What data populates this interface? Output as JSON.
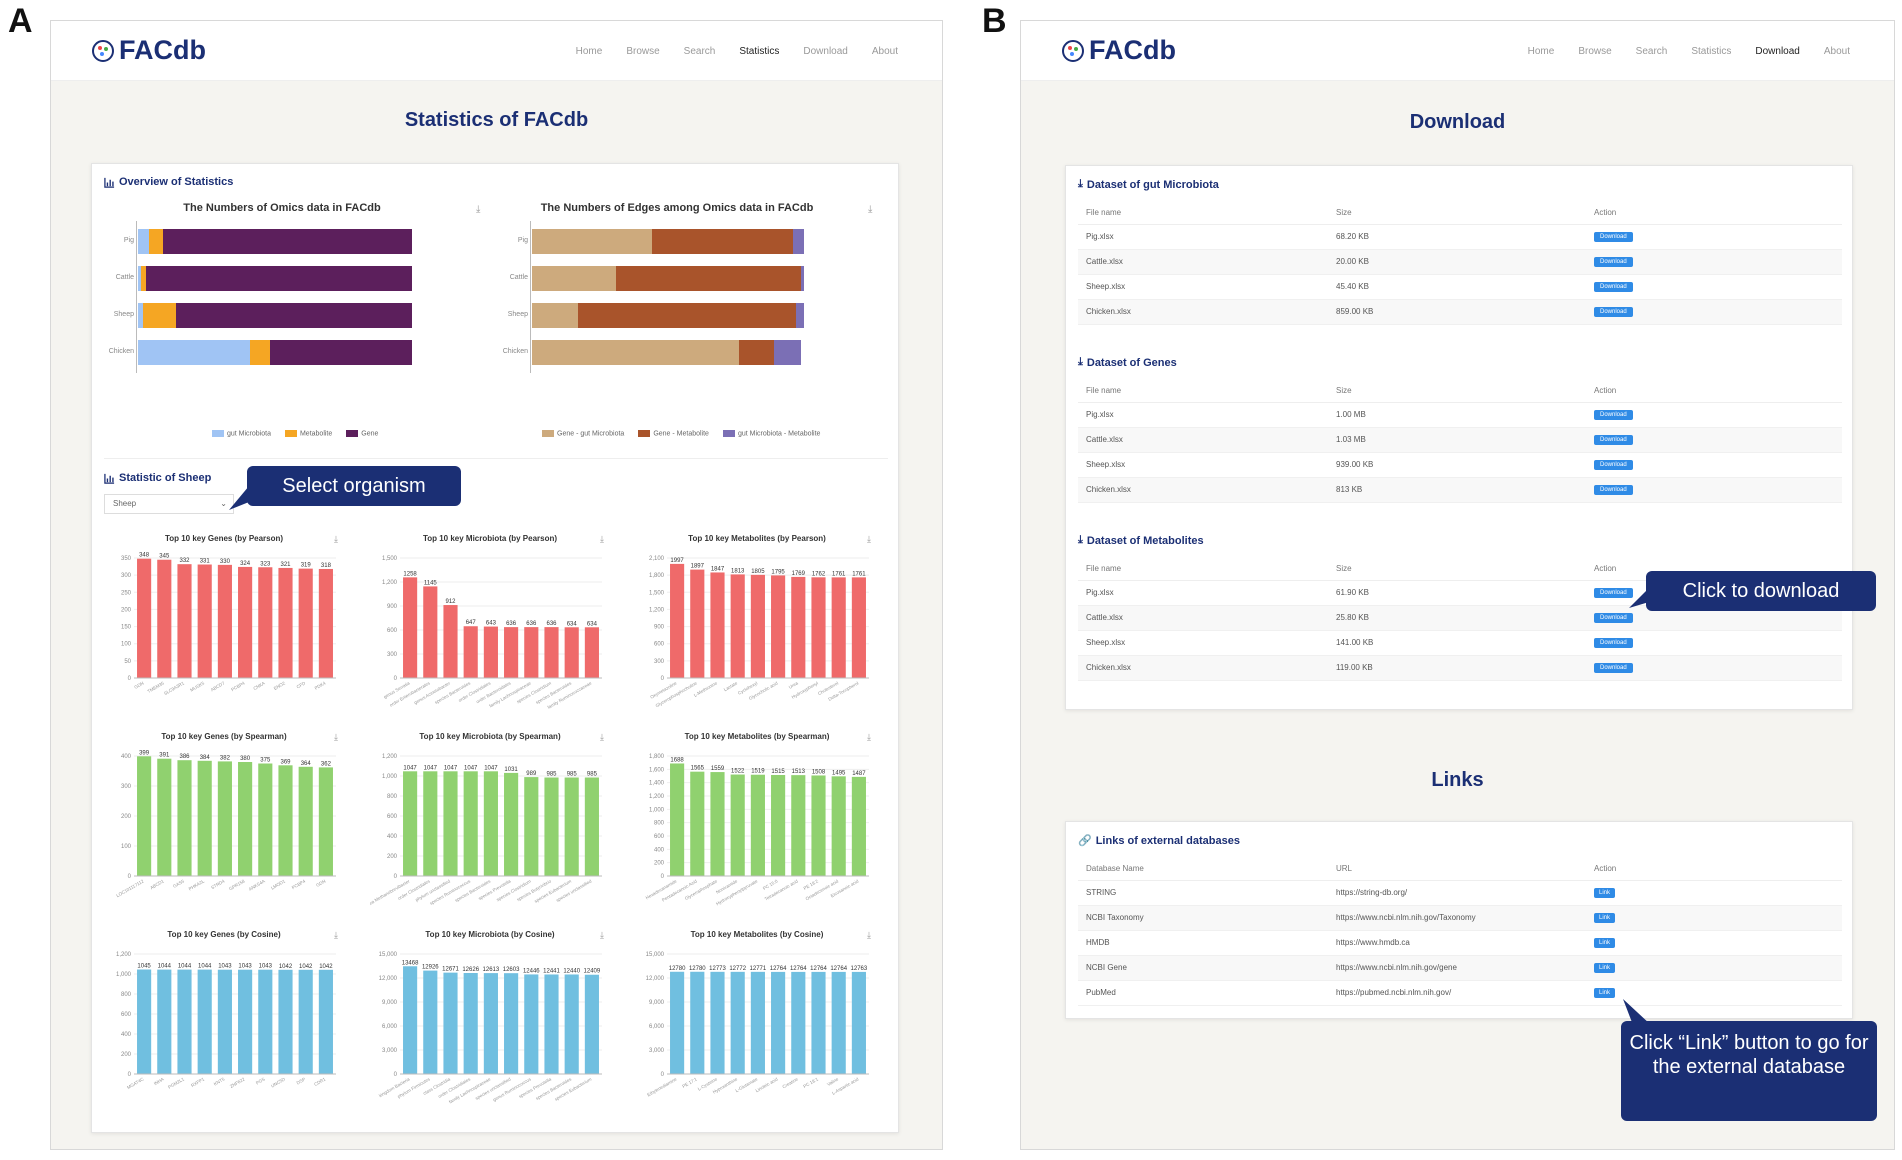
{
  "panel_labels": {
    "a": "A",
    "b": "B"
  },
  "logo_text": "FACdb",
  "pageA": {
    "nav": [
      "Home",
      "Browse",
      "Search",
      "Statistics",
      "Download",
      "About"
    ],
    "active_nav": "Statistics",
    "title": "Statistics of FACdb",
    "overview_title": "Overview of Statistics",
    "sheep_title": "Statistic of Sheep",
    "select_value": "Sheep",
    "callout_select": "Select organism"
  },
  "chart_data": [
    {
      "type": "bar",
      "stacked": true,
      "orientation": "horizontal",
      "title": "The Numbers of Omics data in FACdb",
      "categories": [
        "Pig",
        "Cattle",
        "Sheep",
        "Chicken"
      ],
      "series": [
        {
          "name": "gut Microbiota",
          "color": "#a0c4f4",
          "values": [
            4,
            1,
            2,
            41
          ]
        },
        {
          "name": "Metabolite",
          "color": "#f5a623",
          "values": [
            5,
            2,
            12,
            7
          ]
        },
        {
          "name": "Gene",
          "color": "#5c1f5c",
          "values": [
            91,
            97,
            86,
            52
          ]
        }
      ]
    },
    {
      "type": "bar",
      "stacked": true,
      "orientation": "horizontal",
      "title": "The Numbers of Edges among Omics data in FACdb",
      "categories": [
        "Pig",
        "Cattle",
        "Sheep",
        "Chicken"
      ],
      "series": [
        {
          "name": "Gene - gut Microbiota",
          "color": "#cdaa7d",
          "values": [
            44,
            31,
            17,
            76
          ]
        },
        {
          "name": "Gene - Metabolite",
          "color": "#a9542b",
          "values": [
            52,
            68,
            80,
            13
          ]
        },
        {
          "name": "gut Microbiota - Metabolite",
          "color": "#7b6fb5",
          "values": [
            4,
            1,
            3,
            10
          ]
        }
      ]
    },
    {
      "type": "bar",
      "title": "Top 10 key Genes (by Pearson)",
      "color": "#ef6a6a",
      "yticks": [
        0,
        50,
        100,
        150,
        200,
        250,
        300,
        350
      ],
      "ylim": [
        0,
        350
      ],
      "values": [
        348,
        345,
        332,
        331,
        330,
        324,
        323,
        321,
        319,
        318
      ],
      "categories": [
        "GDN",
        "TMEM35",
        "SLC9A3R1",
        "MUSK5",
        "ABCD7",
        "PCBP4",
        "CNKA",
        "ENO2",
        "CFD",
        "PDK4"
      ]
    },
    {
      "type": "bar",
      "title": "Top 10 key Microbiota (by Pearson)",
      "color": "#ef6a6a",
      "yticks": [
        0,
        300,
        600,
        900,
        1200,
        1500
      ],
      "ylim": [
        0,
        1500
      ],
      "values": [
        1258,
        1145,
        912,
        647,
        643,
        636,
        636,
        636,
        634,
        634
      ],
      "categories": [
        "genus Serratia",
        "order Enterobacterales",
        "genus Acinetobacter",
        "species Bacteroides",
        "order Clostridiales",
        "order Bacteroidales",
        "family Lachnospiraceae",
        "species Clostridium",
        "species Bacteroides",
        "family Ruminococcaceae"
      ]
    },
    {
      "type": "bar",
      "title": "Top 10 key Metabolites (by Pearson)",
      "color": "#ef6a6a",
      "yticks": [
        0,
        300,
        600,
        900,
        1200,
        1500,
        1800,
        2100
      ],
      "ylim": [
        0,
        2100
      ],
      "values": [
        1997,
        1897,
        1847,
        1813,
        1805,
        1795,
        1769,
        1762,
        1761,
        1761
      ],
      "categories": [
        "Oxymetazoline",
        "Glycerophosphocholine",
        "L-Methionine",
        "Lactate",
        "Cyclohexyl",
        "Glycocholic acid",
        "Urea",
        "Hydroxyphenyl",
        "Cholesterol",
        "Delta-Tocopherol"
      ]
    },
    {
      "type": "bar",
      "title": "Top 10 key Genes (by Spearman)",
      "color": "#90d16f",
      "yticks": [
        0,
        100,
        200,
        300,
        400
      ],
      "ylim": [
        0,
        400
      ],
      "values": [
        399,
        391,
        386,
        384,
        382,
        380,
        375,
        369,
        364,
        362
      ],
      "categories": [
        "LOC101117112",
        "ABCD1",
        "GAS5",
        "PHKA2L",
        "STRD4",
        "GPR158",
        "ANKS4A",
        "LMOD1",
        "PCBP4",
        "GDN"
      ]
    },
    {
      "type": "bar",
      "title": "Top 10 key Microbiota (by Spearman)",
      "color": "#90d16f",
      "yticks": [
        0,
        200,
        400,
        600,
        800,
        1000,
        1200
      ],
      "ylim": [
        0,
        1200
      ],
      "values": [
        1047,
        1047,
        1047,
        1047,
        1047,
        1031,
        989,
        985,
        985,
        985
      ],
      "categories": [
        "archaea Methanobrevibacter",
        "order Clostridiales",
        "phylum unclassified",
        "species Ruminococcus",
        "species Bacteroides",
        "species Prevotella",
        "species Clostridium",
        "species Butyrivibrio",
        "species Eubacterium",
        "species unclassified"
      ]
    },
    {
      "type": "bar",
      "title": "Top 10 key Metabolites (by Spearman)",
      "color": "#90d16f",
      "yticks": [
        0,
        200,
        400,
        600,
        800,
        1000,
        1200,
        1400,
        1600,
        1800
      ],
      "ylim": [
        0,
        1800
      ],
      "values": [
        1688,
        1565,
        1559,
        1522,
        1519,
        1515,
        1513,
        1508,
        1495,
        1487
      ],
      "categories": [
        "Hexadecanamide",
        "Pentadecanoic Acid",
        "Glycerophosphate",
        "Nonivamide",
        "Hydroxyphenylpyruvate",
        "PC 15:0",
        "Tetradecanoic acid",
        "PE 18:2",
        "Octadecenoic acid",
        "Eicosanoic acid"
      ]
    },
    {
      "type": "bar",
      "title": "Top 10 key Genes (by Cosine)",
      "color": "#70bfe0",
      "yticks": [
        0,
        200,
        400,
        600,
        800,
        1000,
        1200
      ],
      "ylim": [
        0,
        1200
      ],
      "values": [
        1045,
        1044,
        1044,
        1044,
        1043,
        1043,
        1043,
        1042,
        1042,
        1042
      ],
      "categories": [
        "MGAT4C",
        "INHA",
        "PGM2L1",
        "RXFP1",
        "KNT5",
        "ZNF622",
        "PGS",
        "UNC5D",
        "DSP",
        "CDR1"
      ]
    },
    {
      "type": "bar",
      "title": "Top 10 key Microbiota (by Cosine)",
      "color": "#70bfe0",
      "yticks": [
        0,
        3000,
        6000,
        9000,
        12000,
        15000
      ],
      "ylim": [
        0,
        15000
      ],
      "values": [
        13468,
        12926,
        12671,
        12626,
        12613,
        12603,
        12446,
        12441,
        12440,
        12409
      ],
      "categories": [
        "kingdom Bacteria",
        "phylum Firmicutes",
        "class Clostridia",
        "order Clostridiales",
        "family Lachnospiraceae",
        "species unclassified",
        "genus Ruminococcus",
        "species Prevotella",
        "species Bacteroides",
        "species Eubacterium"
      ]
    },
    {
      "type": "bar",
      "title": "Top 10 key Metabolites (by Cosine)",
      "color": "#70bfe0",
      "yticks": [
        0,
        3000,
        6000,
        9000,
        12000,
        15000
      ],
      "ylim": [
        0,
        15000
      ],
      "values": [
        12780,
        12780,
        12773,
        12772,
        12771,
        12764,
        12764,
        12764,
        12764,
        12763
      ],
      "categories": [
        "Ethylenediamine",
        "PE 17:1",
        "L-Cysteine",
        "Hypoxanthine",
        "L-Glutamate",
        "Linoleic acid",
        "Creatine",
        "PC 18:1",
        "Valine",
        "L-Aspartic acid"
      ]
    }
  ],
  "pageB": {
    "nav": [
      "Home",
      "Browse",
      "Search",
      "Statistics",
      "Download",
      "About"
    ],
    "active_nav": "Download",
    "title": "Download",
    "table_headers": [
      "File name",
      "Size",
      "Action"
    ],
    "button_label": "Download",
    "datasets": [
      {
        "title": "Dataset of gut Microbiota",
        "rows": [
          [
            "Pig.xlsx",
            "68.20 KB"
          ],
          [
            "Cattle.xlsx",
            "20.00 KB"
          ],
          [
            "Sheep.xlsx",
            "45.40 KB"
          ],
          [
            "Chicken.xlsx",
            "859.00 KB"
          ]
        ]
      },
      {
        "title": "Dataset of Genes",
        "rows": [
          [
            "Pig.xlsx",
            "1.00 MB"
          ],
          [
            "Cattle.xlsx",
            "1.03 MB"
          ],
          [
            "Sheep.xlsx",
            "939.00 KB"
          ],
          [
            "Chicken.xlsx",
            "813 KB"
          ]
        ]
      },
      {
        "title": "Dataset of Metabolites",
        "rows": [
          [
            "Pig.xlsx",
            "61.90 KB"
          ],
          [
            "Cattle.xlsx",
            "25.80 KB"
          ],
          [
            "Sheep.xlsx",
            "141.00 KB"
          ],
          [
            "Chicken.xlsx",
            "119.00 KB"
          ]
        ]
      }
    ],
    "links_title": "Links",
    "links_card_title": "Links of external databases",
    "links_headers": [
      "Database Name",
      "URL",
      "Action"
    ],
    "link_button": "Link",
    "links": [
      [
        "STRING",
        "https://string-db.org/"
      ],
      [
        "NCBI Taxonomy",
        "https://www.ncbi.nlm.nih.gov/Taxonomy"
      ],
      [
        "HMDB",
        "https://www.hmdb.ca"
      ],
      [
        "NCBI Gene",
        "https://www.ncbi.nlm.nih.gov/gene"
      ],
      [
        "PubMed",
        "https://pubmed.ncbi.nlm.nih.gov/"
      ]
    ],
    "callout_download": "Click to download",
    "callout_link": "Click “Link” button to go for the external database"
  }
}
